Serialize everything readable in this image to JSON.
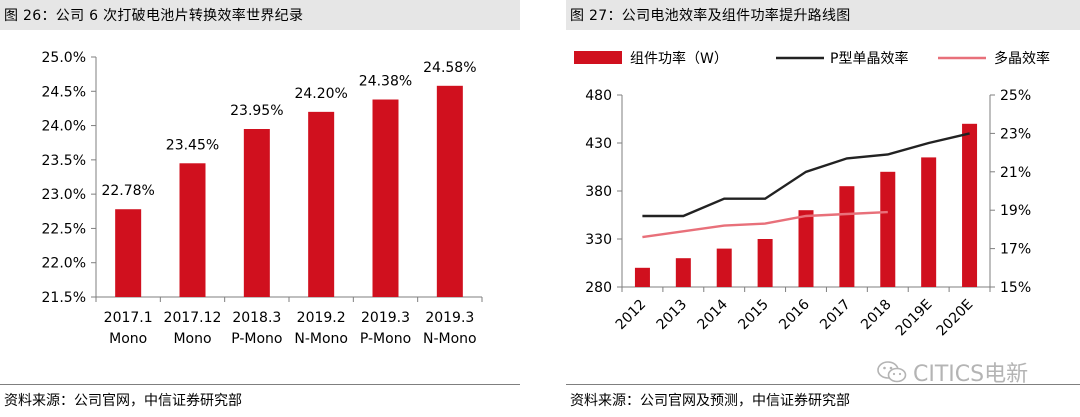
{
  "left": {
    "title": "图 26：公司 6 次打破电池片转换效率世界纪录",
    "source": "资料来源：公司官网，中信证券研究部"
  },
  "right": {
    "title": "图 27：公司电池效率及组件功率提升路线图",
    "source": "资料来源：公司官网及预测，中信证券研究部"
  },
  "watermark": {
    "text": "CITICS电新",
    "icon": "wechat-icon"
  },
  "colors": {
    "bar": "#d0101e",
    "mono_line": "#222222",
    "poly_line": "#e8707a"
  },
  "chart_data": [
    {
      "type": "bar",
      "categories": [
        [
          "2017.1",
          "Mono"
        ],
        [
          "2017.12",
          "Mono"
        ],
        [
          "2018.3",
          "P-Mono"
        ],
        [
          "2019.2",
          "N-Mono"
        ],
        [
          "2019.3",
          "P-Mono"
        ],
        [
          "2019.3",
          "N-Mono"
        ]
      ],
      "values": [
        22.78,
        23.45,
        23.95,
        24.2,
        24.38,
        24.58
      ],
      "data_labels": [
        "22.78%",
        "23.45%",
        "23.95%",
        "24.20%",
        "24.38%",
        "24.58%"
      ],
      "ylim": [
        21.5,
        25.0
      ],
      "yticks": [
        "21.5%",
        "22.0%",
        "22.5%",
        "23.0%",
        "23.5%",
        "24.0%",
        "24.5%",
        "25.0%"
      ],
      "grid": false
    },
    {
      "type": "bar",
      "categories": [
        "2012",
        "2013",
        "2014",
        "2015",
        "2016",
        "2017",
        "2018",
        "2019E",
        "2020E"
      ],
      "series": [
        {
          "name": "组件功率（W）",
          "type": "bar",
          "axis": "left",
          "values": [
            300,
            310,
            320,
            330,
            360,
            385,
            400,
            415,
            450
          ]
        },
        {
          "name": "P型单晶效率",
          "type": "line",
          "axis": "right",
          "values": [
            0.187,
            0.187,
            0.196,
            0.196,
            0.21,
            0.217,
            0.219,
            0.225,
            0.23
          ]
        },
        {
          "name": "多晶效率",
          "type": "line",
          "axis": "right",
          "values": [
            0.176,
            0.179,
            0.182,
            0.183,
            0.187,
            0.188,
            0.189,
            null,
            null
          ]
        }
      ],
      "ylim_left": [
        280,
        480
      ],
      "yticks_left": [
        "280",
        "330",
        "380",
        "430",
        "480"
      ],
      "ylim_right": [
        0.15,
        0.25
      ],
      "yticks_right": [
        "15%",
        "17%",
        "19%",
        "21%",
        "23%",
        "25%"
      ],
      "legend_position": "top",
      "grid": false
    }
  ]
}
